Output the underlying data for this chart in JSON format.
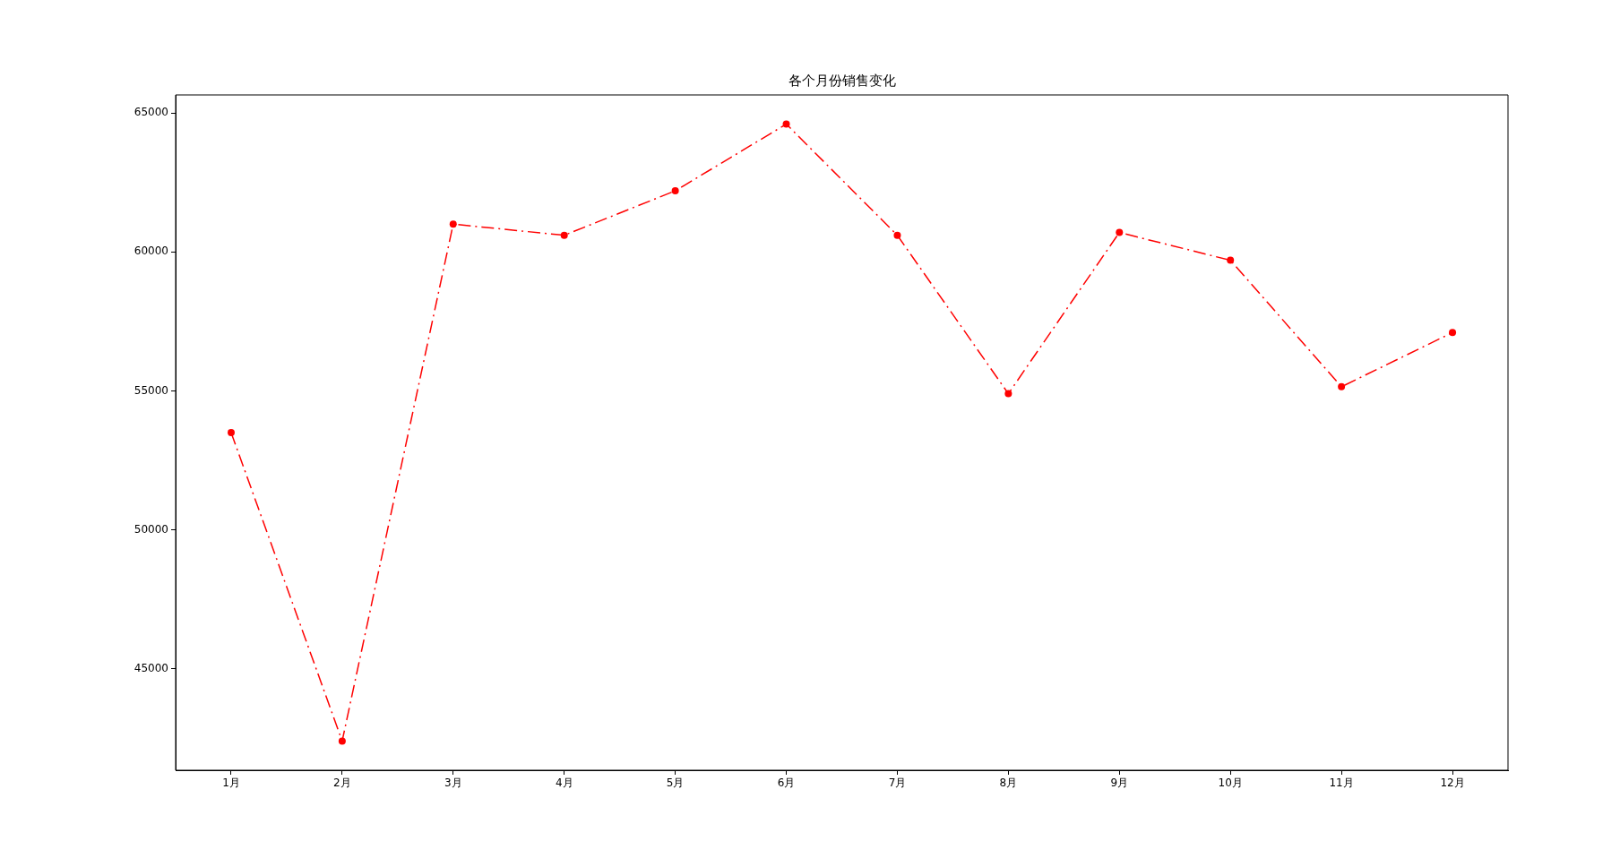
{
  "chart_data": {
    "type": "line",
    "title": "各个月份销售变化",
    "categories": [
      "1月",
      "2月",
      "3月",
      "4月",
      "5月",
      "6月",
      "7月",
      "8月",
      "9月",
      "10月",
      "11月",
      "12月"
    ],
    "series": [
      {
        "color": "#ff0000",
        "values": [
          53500,
          42400,
          61000,
          60600,
          62200,
          64600,
          60600,
          54900,
          60700,
          59700,
          55150,
          57100
        ]
      }
    ],
    "ylim": [
      41350,
      65650
    ],
    "yticks": [
      45000,
      50000,
      55000,
      60000,
      65000
    ],
    "marker": "circle",
    "line_style": "dashed",
    "grid": false,
    "legend": false
  }
}
